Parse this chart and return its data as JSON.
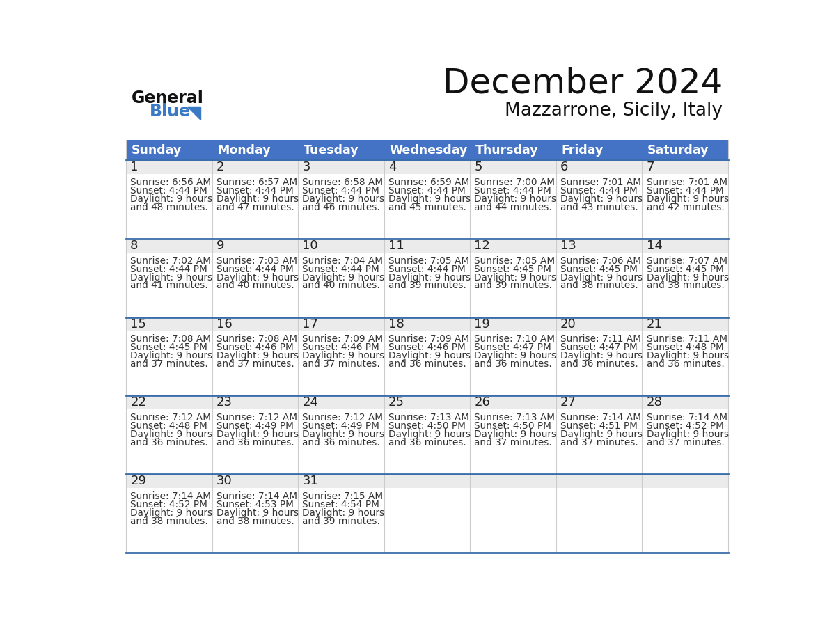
{
  "title": "December 2024",
  "subtitle": "Mazzarrone, Sicily, Italy",
  "header_bg": "#4472C4",
  "header_text_color": "#FFFFFF",
  "weekdays": [
    "Sunday",
    "Monday",
    "Tuesday",
    "Wednesday",
    "Thursday",
    "Friday",
    "Saturday"
  ],
  "row_separator_color": "#3A6EAA",
  "day_number_bg": "#E8E8E8",
  "cell_bg": "#FFFFFF",
  "day_text_color": "#222222",
  "info_text_color": "#333333",
  "title_color": "#111111",
  "subtitle_color": "#111111",
  "logo_general_color": "#111111",
  "logo_blue_color": "#3A7AC4",
  "weeks": [
    [
      {
        "day": 1,
        "sunrise": "6:56 AM",
        "sunset": "4:44 PM",
        "daylight_h": "9 hours",
        "daylight_m": "48 minutes."
      },
      {
        "day": 2,
        "sunrise": "6:57 AM",
        "sunset": "4:44 PM",
        "daylight_h": "9 hours",
        "daylight_m": "47 minutes."
      },
      {
        "day": 3,
        "sunrise": "6:58 AM",
        "sunset": "4:44 PM",
        "daylight_h": "9 hours",
        "daylight_m": "46 minutes."
      },
      {
        "day": 4,
        "sunrise": "6:59 AM",
        "sunset": "4:44 PM",
        "daylight_h": "9 hours",
        "daylight_m": "45 minutes."
      },
      {
        "day": 5,
        "sunrise": "7:00 AM",
        "sunset": "4:44 PM",
        "daylight_h": "9 hours",
        "daylight_m": "44 minutes."
      },
      {
        "day": 6,
        "sunrise": "7:01 AM",
        "sunset": "4:44 PM",
        "daylight_h": "9 hours",
        "daylight_m": "43 minutes."
      },
      {
        "day": 7,
        "sunrise": "7:01 AM",
        "sunset": "4:44 PM",
        "daylight_h": "9 hours",
        "daylight_m": "42 minutes."
      }
    ],
    [
      {
        "day": 8,
        "sunrise": "7:02 AM",
        "sunset": "4:44 PM",
        "daylight_h": "9 hours",
        "daylight_m": "41 minutes."
      },
      {
        "day": 9,
        "sunrise": "7:03 AM",
        "sunset": "4:44 PM",
        "daylight_h": "9 hours",
        "daylight_m": "40 minutes."
      },
      {
        "day": 10,
        "sunrise": "7:04 AM",
        "sunset": "4:44 PM",
        "daylight_h": "9 hours",
        "daylight_m": "40 minutes."
      },
      {
        "day": 11,
        "sunrise": "7:05 AM",
        "sunset": "4:44 PM",
        "daylight_h": "9 hours",
        "daylight_m": "39 minutes."
      },
      {
        "day": 12,
        "sunrise": "7:05 AM",
        "sunset": "4:45 PM",
        "daylight_h": "9 hours",
        "daylight_m": "39 minutes."
      },
      {
        "day": 13,
        "sunrise": "7:06 AM",
        "sunset": "4:45 PM",
        "daylight_h": "9 hours",
        "daylight_m": "38 minutes."
      },
      {
        "day": 14,
        "sunrise": "7:07 AM",
        "sunset": "4:45 PM",
        "daylight_h": "9 hours",
        "daylight_m": "38 minutes."
      }
    ],
    [
      {
        "day": 15,
        "sunrise": "7:08 AM",
        "sunset": "4:45 PM",
        "daylight_h": "9 hours",
        "daylight_m": "37 minutes."
      },
      {
        "day": 16,
        "sunrise": "7:08 AM",
        "sunset": "4:46 PM",
        "daylight_h": "9 hours",
        "daylight_m": "37 minutes."
      },
      {
        "day": 17,
        "sunrise": "7:09 AM",
        "sunset": "4:46 PM",
        "daylight_h": "9 hours",
        "daylight_m": "37 minutes."
      },
      {
        "day": 18,
        "sunrise": "7:09 AM",
        "sunset": "4:46 PM",
        "daylight_h": "9 hours",
        "daylight_m": "36 minutes."
      },
      {
        "day": 19,
        "sunrise": "7:10 AM",
        "sunset": "4:47 PM",
        "daylight_h": "9 hours",
        "daylight_m": "36 minutes."
      },
      {
        "day": 20,
        "sunrise": "7:11 AM",
        "sunset": "4:47 PM",
        "daylight_h": "9 hours",
        "daylight_m": "36 minutes."
      },
      {
        "day": 21,
        "sunrise": "7:11 AM",
        "sunset": "4:48 PM",
        "daylight_h": "9 hours",
        "daylight_m": "36 minutes."
      }
    ],
    [
      {
        "day": 22,
        "sunrise": "7:12 AM",
        "sunset": "4:48 PM",
        "daylight_h": "9 hours",
        "daylight_m": "36 minutes."
      },
      {
        "day": 23,
        "sunrise": "7:12 AM",
        "sunset": "4:49 PM",
        "daylight_h": "9 hours",
        "daylight_m": "36 minutes."
      },
      {
        "day": 24,
        "sunrise": "7:12 AM",
        "sunset": "4:49 PM",
        "daylight_h": "9 hours",
        "daylight_m": "36 minutes."
      },
      {
        "day": 25,
        "sunrise": "7:13 AM",
        "sunset": "4:50 PM",
        "daylight_h": "9 hours",
        "daylight_m": "36 minutes."
      },
      {
        "day": 26,
        "sunrise": "7:13 AM",
        "sunset": "4:50 PM",
        "daylight_h": "9 hours",
        "daylight_m": "37 minutes."
      },
      {
        "day": 27,
        "sunrise": "7:14 AM",
        "sunset": "4:51 PM",
        "daylight_h": "9 hours",
        "daylight_m": "37 minutes."
      },
      {
        "day": 28,
        "sunrise": "7:14 AM",
        "sunset": "4:52 PM",
        "daylight_h": "9 hours",
        "daylight_m": "37 minutes."
      }
    ],
    [
      {
        "day": 29,
        "sunrise": "7:14 AM",
        "sunset": "4:52 PM",
        "daylight_h": "9 hours",
        "daylight_m": "38 minutes."
      },
      {
        "day": 30,
        "sunrise": "7:14 AM",
        "sunset": "4:53 PM",
        "daylight_h": "9 hours",
        "daylight_m": "38 minutes."
      },
      {
        "day": 31,
        "sunrise": "7:15 AM",
        "sunset": "4:54 PM",
        "daylight_h": "9 hours",
        "daylight_m": "39 minutes."
      },
      null,
      null,
      null,
      null
    ]
  ]
}
